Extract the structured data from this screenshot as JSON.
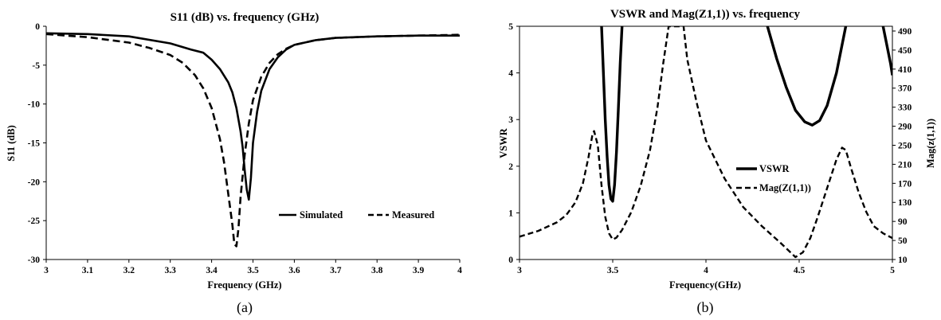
{
  "chart_data": [
    {
      "type": "line",
      "title": "S11 (dB) vs. frequency (GHz)",
      "xlabel": "Frequency (GHz)",
      "ylabel": "S11 (dB)",
      "xlim": [
        3,
        4
      ],
      "ylim": [
        -30,
        0
      ],
      "xticks": [
        "3",
        "3.1",
        "3.2",
        "3.3",
        "3.4",
        "3.5",
        "3.6",
        "3.7",
        "3.8",
        "3.9",
        "4"
      ],
      "yticks": [
        "0",
        "-5",
        "-10",
        "-15",
        "-20",
        "-25",
        "-30"
      ],
      "legend_position": "bottom-right",
      "caption": "(a)",
      "series": [
        {
          "name": "Simulated",
          "style": "solid",
          "x": [
            3.0,
            3.1,
            3.2,
            3.3,
            3.35,
            3.38,
            3.4,
            3.42,
            3.44,
            3.45,
            3.46,
            3.47,
            3.475,
            3.48,
            3.485,
            3.49,
            3.495,
            3.5,
            3.51,
            3.52,
            3.54,
            3.56,
            3.58,
            3.6,
            3.65,
            3.7,
            3.8,
            3.9,
            4.0
          ],
          "y": [
            -0.9,
            -1.0,
            -1.3,
            -2.2,
            -3.0,
            -3.4,
            -4.3,
            -5.5,
            -7.2,
            -8.5,
            -10.5,
            -13.5,
            -15.5,
            -18.5,
            -21.0,
            -22.3,
            -19.5,
            -15.0,
            -11.0,
            -8.3,
            -5.5,
            -4.0,
            -3.0,
            -2.4,
            -1.8,
            -1.5,
            -1.3,
            -1.2,
            -1.2
          ]
        },
        {
          "name": "Measured",
          "style": "dashed",
          "x": [
            3.0,
            3.1,
            3.2,
            3.25,
            3.3,
            3.33,
            3.36,
            3.38,
            3.4,
            3.42,
            3.43,
            3.44,
            3.45,
            3.455,
            3.46,
            3.465,
            3.47,
            3.48,
            3.49,
            3.5,
            3.52,
            3.54,
            3.56,
            3.58,
            3.6,
            3.65,
            3.7,
            3.8,
            3.9,
            4.0
          ],
          "y": [
            -1.0,
            -1.4,
            -2.1,
            -2.8,
            -3.7,
            -4.7,
            -6.3,
            -8.0,
            -10.5,
            -14.5,
            -17.5,
            -21.5,
            -25.5,
            -28.0,
            -28.3,
            -26.0,
            -22.0,
            -16.5,
            -12.5,
            -9.5,
            -6.5,
            -4.7,
            -3.6,
            -2.9,
            -2.4,
            -1.8,
            -1.5,
            -1.3,
            -1.2,
            -1.1
          ]
        }
      ]
    },
    {
      "type": "line",
      "title": "VSWR and  Mag(Z1,1)) vs. frequency",
      "xlabel": "Frequency(GHz)",
      "ylabel": "VSWR",
      "y2label": "Mag(z(1,1))",
      "xlim": [
        3,
        5
      ],
      "ylim": [
        0,
        5
      ],
      "y2lim": [
        10,
        500
      ],
      "xticks": [
        "3",
        "3.5",
        "4",
        "4.5",
        "5"
      ],
      "yticks": [
        "0",
        "1",
        "2",
        "3",
        "4",
        "5"
      ],
      "y2ticks": [
        "10",
        "50",
        "90",
        "130",
        "170",
        "210",
        "250",
        "290",
        "330",
        "370",
        "410",
        "450",
        "490"
      ],
      "legend_position": "center-right",
      "caption": "(b)",
      "series": [
        {
          "name": "VSWR",
          "style": "solid",
          "axis": "left",
          "segments": [
            {
              "x": [
                3.44,
                3.45,
                3.46,
                3.47,
                3.48,
                3.49,
                3.5,
                3.51,
                3.52,
                3.53,
                3.54,
                3.55
              ],
              "y": [
                5.0,
                4.0,
                3.0,
                2.2,
                1.6,
                1.3,
                1.25,
                1.6,
                2.3,
                3.2,
                4.2,
                5.0
              ]
            },
            {
              "x": [
                4.33,
                4.38,
                4.43,
                4.48,
                4.53,
                4.57,
                4.61,
                4.65,
                4.7,
                4.75
              ],
              "y": [
                5.0,
                4.3,
                3.7,
                3.2,
                2.95,
                2.88,
                2.98,
                3.3,
                4.0,
                5.0
              ]
            },
            {
              "x": [
                4.95,
                4.97,
                4.99,
                5.0
              ],
              "y": [
                5.0,
                4.6,
                4.2,
                3.95
              ]
            }
          ]
        },
        {
          "name": "Mag(Z(1,1))",
          "style": "dashed",
          "axis": "right",
          "x": [
            3.0,
            3.1,
            3.2,
            3.25,
            3.3,
            3.34,
            3.37,
            3.39,
            3.4,
            3.42,
            3.44,
            3.46,
            3.48,
            3.5,
            3.52,
            3.55,
            3.6,
            3.65,
            3.7,
            3.74,
            3.77,
            3.8,
            3.85,
            3.88,
            3.9,
            3.95,
            4.0,
            4.1,
            4.2,
            4.3,
            4.4,
            4.48,
            4.52,
            4.56,
            4.6,
            4.65,
            4.7,
            4.73,
            4.75,
            4.78,
            4.82,
            4.86,
            4.9,
            4.95,
            5.0
          ],
          "y": [
            58,
            70,
            88,
            103,
            130,
            170,
            225,
            270,
            280,
            250,
            165,
            100,
            65,
            52,
            56,
            72,
            110,
            165,
            240,
            330,
            420,
            500,
            500,
            500,
            430,
            340,
            260,
            180,
            120,
            80,
            45,
            15,
            25,
            55,
            100,
            160,
            220,
            245,
            240,
            200,
            150,
            110,
            80,
            65,
            55
          ]
        }
      ]
    }
  ]
}
